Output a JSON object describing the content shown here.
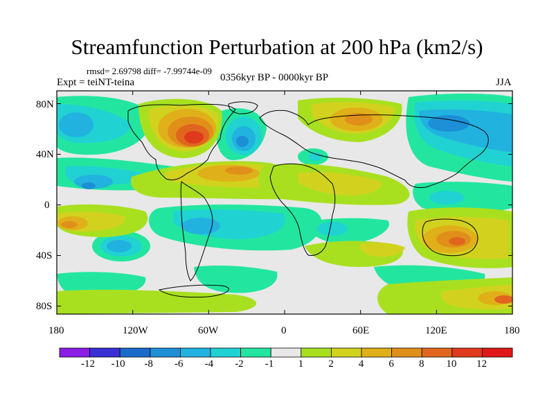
{
  "header": {
    "title": "Streamfunction Perturbation at 200 hPa (km2/s)",
    "rmsd": "rmsd= 2.69798 diff= -7.99744e-09",
    "expt": "Expt = teiNT-teina",
    "period": "0356kyr BP - 0000kyr BP",
    "season": "JJA"
  },
  "axes": {
    "y_ticks": [
      "80N",
      "40N",
      "0",
      "40S",
      "80S"
    ],
    "x_ticks": [
      "180",
      "120W",
      "60W",
      "0",
      "60E",
      "120E",
      "180"
    ]
  },
  "legend": {
    "labels": [
      "-12",
      "-10",
      "-8",
      "-6",
      "-4",
      "-2",
      "-1",
      "1",
      "2",
      "4",
      "6",
      "8",
      "10",
      "12"
    ],
    "colors": [
      "#8a1ee6",
      "#3a30d6",
      "#1a6acc",
      "#1c8fd6",
      "#22b2df",
      "#20d2d2",
      "#22e6a0",
      "#e8e8e8",
      "#a8e020",
      "#d2d21e",
      "#e0b01a",
      "#e0901a",
      "#e0661e",
      "#e03a1e",
      "#e01818"
    ]
  },
  "colors": {
    "neutral": "#e8e8e8",
    "frame": "#000000"
  }
}
